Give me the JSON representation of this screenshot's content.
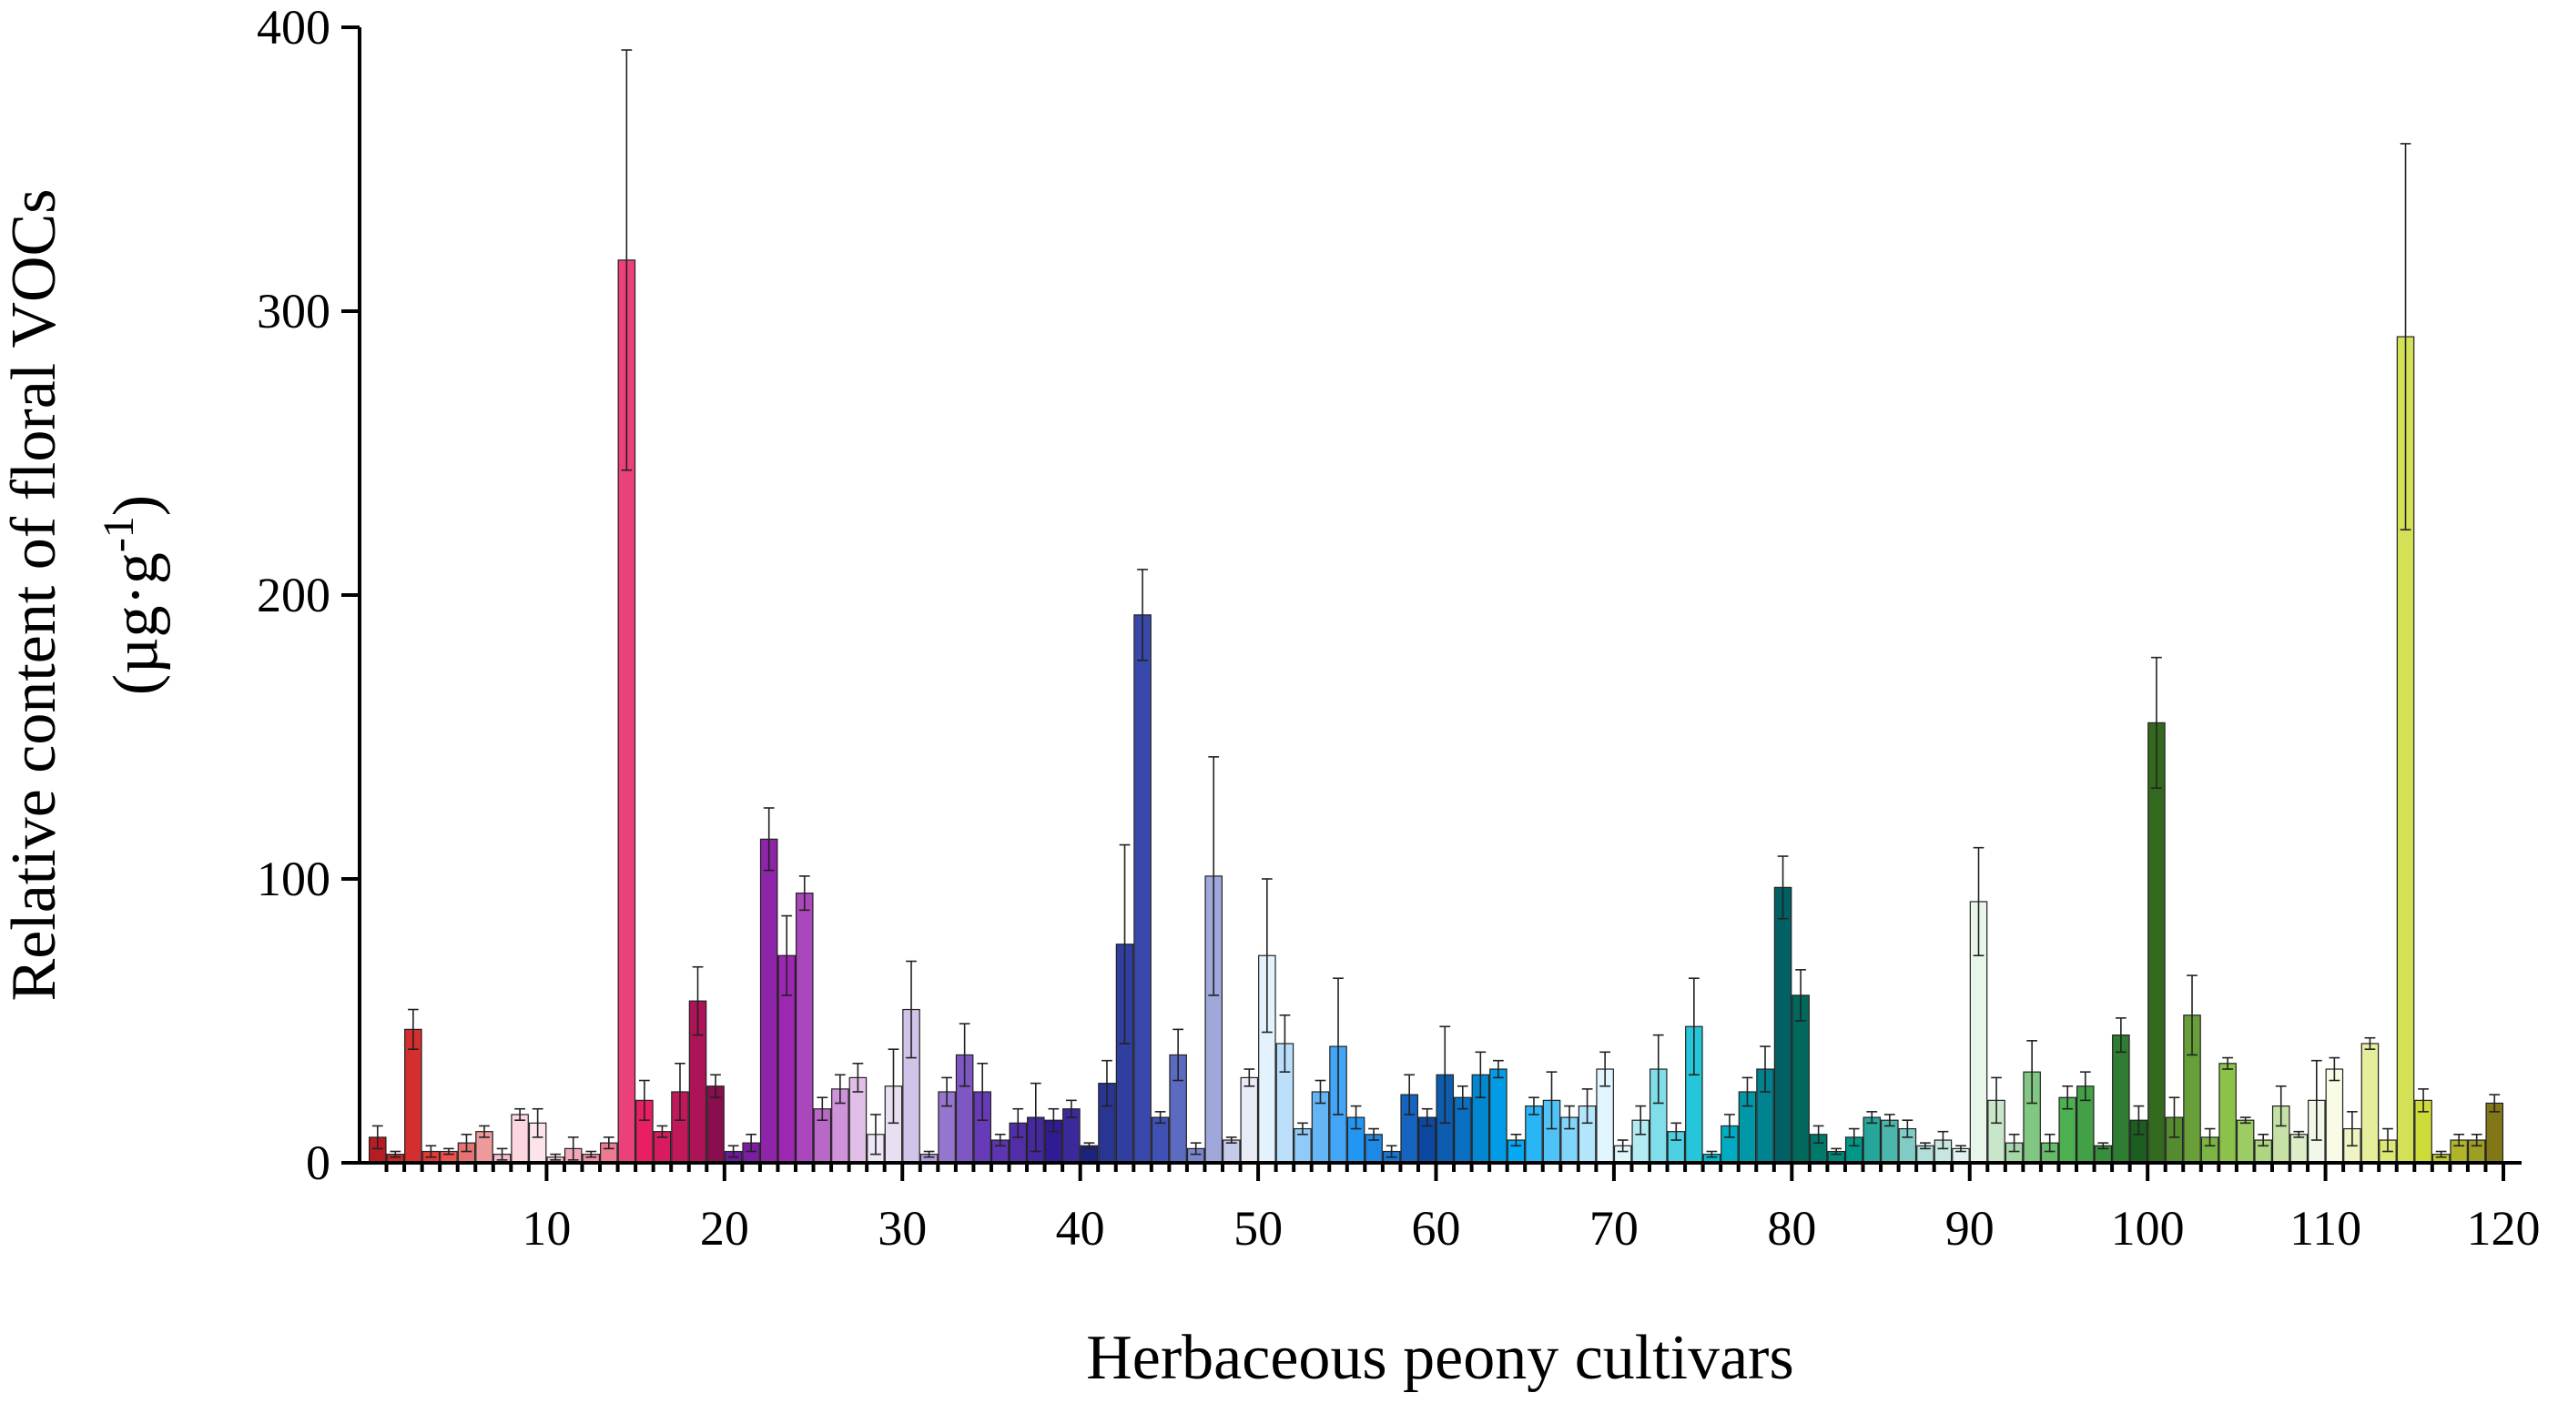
{
  "chart_data": {
    "type": "bar",
    "title": "",
    "xlabel": "Herbaceous peony cultivars",
    "ylabel_line1": "Relative content of floral VOCs",
    "ylabel_line2_prefix": "(µg·g",
    "ylabel_line2_sup": "-1",
    "ylabel_line2_suffix": ")",
    "xlim": [
      0,
      120
    ],
    "ylim": [
      0,
      400
    ],
    "xticks": [
      10,
      20,
      30,
      40,
      50,
      60,
      70,
      80,
      90,
      100,
      110,
      120
    ],
    "yticks": [
      0,
      100,
      200,
      300,
      400
    ],
    "values": [
      9,
      3,
      47,
      4,
      4,
      7,
      11,
      3,
      17,
      14,
      2,
      5,
      3,
      7,
      318,
      22,
      11,
      25,
      57,
      27,
      4,
      7,
      114,
      73,
      95,
      19,
      26,
      30,
      10,
      27,
      54,
      3,
      25,
      38,
      25,
      8,
      14,
      16,
      15,
      19,
      6,
      28,
      77,
      193,
      16,
      38,
      5,
      101,
      8,
      30,
      73,
      42,
      12,
      25,
      41,
      16,
      10,
      4,
      24,
      16,
      31,
      23,
      31,
      33,
      8,
      20,
      22,
      16,
      20,
      33,
      6,
      15,
      33,
      11,
      48,
      3,
      13,
      25,
      33,
      97,
      59,
      10,
      4,
      9,
      16,
      15,
      12,
      6,
      8,
      5,
      92,
      22,
      7,
      32,
      7,
      23,
      27,
      6,
      45,
      15,
      155,
      16,
      52,
      9,
      35,
      15,
      8,
      20,
      10,
      22,
      33,
      12,
      42,
      8,
      291,
      22,
      3,
      8,
      8,
      21
    ],
    "errors": [
      4,
      1,
      7,
      2,
      1,
      3,
      2,
      2,
      2,
      5,
      1,
      4,
      1,
      2,
      74,
      7,
      2,
      10,
      12,
      4,
      2,
      3,
      11,
      14,
      6,
      4,
      5,
      5,
      7,
      13,
      17,
      1,
      5,
      11,
      10,
      2,
      5,
      12,
      4,
      3,
      1,
      8,
      35,
      16,
      2,
      9,
      2,
      42,
      1,
      3,
      27,
      10,
      2,
      4,
      24,
      4,
      2,
      2,
      7,
      3,
      17,
      4,
      8,
      3,
      2,
      3,
      10,
      4,
      6,
      6,
      2,
      5,
      12,
      3,
      17,
      1,
      4,
      5,
      8,
      11,
      9,
      3,
      1,
      3,
      2,
      2,
      3,
      1,
      3,
      1,
      19,
      8,
      3,
      11,
      3,
      4,
      5,
      1,
      6,
      5,
      23,
      7,
      14,
      3,
      2,
      1,
      2,
      7,
      1,
      14,
      4,
      6,
      2,
      4,
      68,
      4,
      1,
      2,
      2,
      3
    ],
    "colors": [
      "#b81c22",
      "#c62828",
      "#d32f2f",
      "#e53935",
      "#ef5350",
      "#e57373",
      "#ef9a9a",
      "#f8bbd0",
      "#fcd7df",
      "#fde4ea",
      "#f7c6d0",
      "#f3a8b8",
      "#f08fa5",
      "#ec7a93",
      "#ec407a",
      "#e91e63",
      "#d81b60",
      "#c2185b",
      "#ad1457",
      "#880e4f",
      "#6a1b9a",
      "#7b1fa2",
      "#8e24aa",
      "#9c27b0",
      "#ab47bc",
      "#ba68c8",
      "#ce93d8",
      "#e1bee7",
      "#ede7f6",
      "#e8dff2",
      "#d1c4e9",
      "#b39ddb",
      "#9575cd",
      "#7e57c2",
      "#673ab7",
      "#5e35b1",
      "#512da8",
      "#4527a0",
      "#311b92",
      "#3b2a9a",
      "#1a237e",
      "#283593",
      "#303f9f",
      "#3949ab",
      "#3f51b5",
      "#5c6bc0",
      "#7986cb",
      "#9fa8da",
      "#c5cae9",
      "#e8eaf6",
      "#e3f2fd",
      "#bbdefb",
      "#90caf9",
      "#64b5f6",
      "#42a5f5",
      "#2196f3",
      "#1e88e5",
      "#1976d2",
      "#1565c0",
      "#0d47a1",
      "#0d5cb0",
      "#0a6fc0",
      "#0288d1",
      "#039be5",
      "#03a9f4",
      "#29b6f6",
      "#4fc3f7",
      "#81d4fa",
      "#b3e5fc",
      "#e1f5fe",
      "#e0f7fa",
      "#b2ebf2",
      "#80deea",
      "#4dd0e1",
      "#26c6da",
      "#00bcd4",
      "#00acc1",
      "#0097a7",
      "#00838f",
      "#006064",
      "#00695c",
      "#00796b",
      "#00897b",
      "#009688",
      "#26a69a",
      "#4db6ac",
      "#80cbc4",
      "#b2dfdb",
      "#c8e6e0",
      "#e0f2f1",
      "#e8f5e9",
      "#c8e6c9",
      "#a5d6a7",
      "#81c784",
      "#66bb6a",
      "#4caf50",
      "#43a047",
      "#388e3c",
      "#2e7d32",
      "#1b5e20",
      "#33691e",
      "#558b2f",
      "#689f38",
      "#7cb342",
      "#8bc34a",
      "#9ccc65",
      "#aed581",
      "#c5e1a5",
      "#dcedc8",
      "#f1f8e9",
      "#f9fbe7",
      "#f0f4c3",
      "#e6ee9c",
      "#dce775",
      "#d4e157",
      "#cddc39",
      "#c0ca33",
      "#afb42b",
      "#9e9d24",
      "#827717"
    ]
  }
}
